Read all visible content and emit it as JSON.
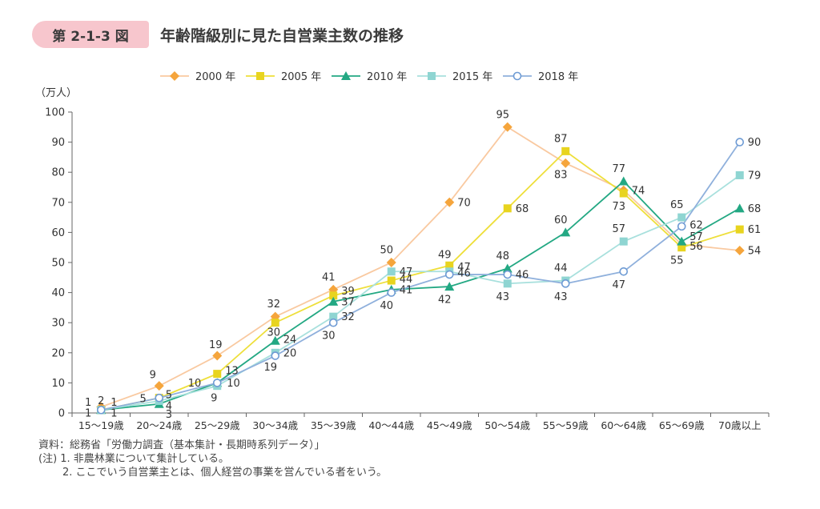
{
  "figure": {
    "number": "第 2-1-3 図",
    "title": "年齢階級別に見た自営業主数の推移"
  },
  "chart_data": {
    "type": "line",
    "title": "年齢階級別に見た自営業主数の推移",
    "ylabel": "（万人）",
    "xlabel": "",
    "ylim": [
      0,
      100
    ],
    "yticks": [
      0,
      10,
      20,
      30,
      40,
      50,
      60,
      70,
      80,
      90,
      100
    ],
    "categories": [
      "15～19歳",
      "20～24歳",
      "25～29歳",
      "30～34歳",
      "35～39歳",
      "40～44歳",
      "45～49歳",
      "50～54歳",
      "55～59歳",
      "60～64歳",
      "65～69歳",
      "70歳以上"
    ],
    "legend_position": "top",
    "series": [
      {
        "name": "2000 年",
        "color": "#f5a53c",
        "line_color": "#f9c9a0",
        "marker": "diamond",
        "values": [
          2,
          9,
          19,
          32,
          41,
          50,
          70,
          95,
          83,
          74,
          56,
          54
        ]
      },
      {
        "name": "2005 年",
        "color": "#e8d41f",
        "line_color": "#eedf3a",
        "marker": "square",
        "values": [
          1,
          5,
          13,
          30,
          39,
          44,
          49,
          68,
          87,
          73,
          55,
          61
        ]
      },
      {
        "name": "2010 年",
        "color": "#23a883",
        "line_color": "#23a883",
        "marker": "triangle",
        "values": [
          1,
          3,
          10,
          24,
          37,
          41,
          42,
          48,
          60,
          77,
          57,
          68
        ]
      },
      {
        "name": "2015 年",
        "color": "#8fd5d2",
        "line_color": "#a8e0dd",
        "marker": "square",
        "values": [
          1,
          4,
          9,
          20,
          32,
          47,
          47,
          43,
          44,
          57,
          65,
          79
        ]
      },
      {
        "name": "2018 年",
        "color": "#6e9bd4",
        "line_color": "#8fb0dc",
        "marker": "circle",
        "values": [
          1,
          5,
          10,
          19,
          30,
          40,
          46,
          46,
          43,
          47,
          62,
          90
        ]
      }
    ],
    "data_labels": [
      {
        "text": "1",
        "cat": 0,
        "value": 2,
        "dx": -12,
        "dy": -6
      },
      {
        "text": "2",
        "cat": 0,
        "value": 2,
        "dx": 0,
        "dy": -8
      },
      {
        "text": "1",
        "cat": 0,
        "value": 2,
        "dx": 12,
        "dy": -6
      },
      {
        "text": "1",
        "cat": 0,
        "value": 1,
        "dx": -12,
        "dy": 4
      },
      {
        "text": "1",
        "cat": 0,
        "value": 1,
        "dx": 12,
        "dy": 4
      },
      {
        "text": "9",
        "cat": 1,
        "value": 9,
        "dx": -8,
        "dy": -14
      },
      {
        "text": "5",
        "cat": 1,
        "value": 5,
        "dx": -16,
        "dy": 1
      },
      {
        "text": "5",
        "cat": 1,
        "value": 5,
        "dx": 8,
        "dy": -4
      },
      {
        "text": "4",
        "cat": 1,
        "value": 4,
        "dx": 8,
        "dy": 6
      },
      {
        "text": "3",
        "cat": 1,
        "value": 3,
        "dx": 8,
        "dy": 13
      },
      {
        "text": "19",
        "cat": 2,
        "value": 19,
        "dx": -2,
        "dy": -14
      },
      {
        "text": "13",
        "cat": 2,
        "value": 13,
        "dx": 10,
        "dy": -4
      },
      {
        "text": "10",
        "cat": 2,
        "value": 10,
        "dx": -20,
        "dy": 0
      },
      {
        "text": "10",
        "cat": 2,
        "value": 10,
        "dx": 12,
        "dy": 0
      },
      {
        "text": "9",
        "cat": 2,
        "value": 9,
        "dx": -4,
        "dy": 15
      },
      {
        "text": "32",
        "cat": 3,
        "value": 32,
        "dx": -2,
        "dy": -16
      },
      {
        "text": "30",
        "cat": 3,
        "value": 30,
        "dx": -2,
        "dy": 12
      },
      {
        "text": "24",
        "cat": 3,
        "value": 24,
        "dx": 10,
        "dy": -2
      },
      {
        "text": "20",
        "cat": 3,
        "value": 20,
        "dx": 10,
        "dy": 0
      },
      {
        "text": "19",
        "cat": 3,
        "value": 19,
        "dx": -6,
        "dy": 14
      },
      {
        "text": "41",
        "cat": 4,
        "value": 41,
        "dx": -6,
        "dy": -16
      },
      {
        "text": "39",
        "cat": 4,
        "value": 39,
        "dx": 10,
        "dy": -6
      },
      {
        "text": "37",
        "cat": 4,
        "value": 37,
        "dx": 10,
        "dy": 0
      },
      {
        "text": "32",
        "cat": 4,
        "value": 32,
        "dx": 10,
        "dy": 0
      },
      {
        "text": "30",
        "cat": 4,
        "value": 30,
        "dx": -6,
        "dy": 16
      },
      {
        "text": "50",
        "cat": 5,
        "value": 50,
        "dx": -6,
        "dy": -16
      },
      {
        "text": "47",
        "cat": 5,
        "value": 47,
        "dx": 10,
        "dy": 0
      },
      {
        "text": "44",
        "cat": 5,
        "value": 44,
        "dx": 10,
        "dy": -2
      },
      {
        "text": "41",
        "cat": 5,
        "value": 41,
        "dx": 10,
        "dy": 0
      },
      {
        "text": "40",
        "cat": 5,
        "value": 40,
        "dx": -6,
        "dy": 16
      },
      {
        "text": "70",
        "cat": 6,
        "value": 70,
        "dx": 10,
        "dy": 0
      },
      {
        "text": "49",
        "cat": 6,
        "value": 49,
        "dx": -6,
        "dy": -14
      },
      {
        "text": "47",
        "cat": 6,
        "value": 47,
        "dx": 10,
        "dy": -6
      },
      {
        "text": "46",
        "cat": 6,
        "value": 46,
        "dx": 10,
        "dy": -2
      },
      {
        "text": "42",
        "cat": 6,
        "value": 42,
        "dx": -6,
        "dy": 16
      },
      {
        "text": "95",
        "cat": 7,
        "value": 95,
        "dx": -6,
        "dy": -16
      },
      {
        "text": "68",
        "cat": 7,
        "value": 68,
        "dx": 10,
        "dy": 0
      },
      {
        "text": "48",
        "cat": 7,
        "value": 48,
        "dx": -6,
        "dy": -16
      },
      {
        "text": "46",
        "cat": 7,
        "value": 46,
        "dx": 10,
        "dy": 0
      },
      {
        "text": "43",
        "cat": 7,
        "value": 43,
        "dx": -6,
        "dy": 16
      },
      {
        "text": "87",
        "cat": 8,
        "value": 87,
        "dx": -6,
        "dy": -16
      },
      {
        "text": "83",
        "cat": 8,
        "value": 83,
        "dx": -6,
        "dy": 14
      },
      {
        "text": "60",
        "cat": 8,
        "value": 60,
        "dx": -6,
        "dy": -16
      },
      {
        "text": "44",
        "cat": 8,
        "value": 44,
        "dx": -6,
        "dy": -16
      },
      {
        "text": "43",
        "cat": 8,
        "value": 43,
        "dx": -6,
        "dy": 16
      },
      {
        "text": "77",
        "cat": 9,
        "value": 77,
        "dx": -6,
        "dy": -16
      },
      {
        "text": "74",
        "cat": 9,
        "value": 74,
        "dx": 10,
        "dy": 0
      },
      {
        "text": "73",
        "cat": 9,
        "value": 73,
        "dx": -6,
        "dy": 16
      },
      {
        "text": "57",
        "cat": 9,
        "value": 57,
        "dx": -6,
        "dy": -16
      },
      {
        "text": "47",
        "cat": 9,
        "value": 47,
        "dx": -6,
        "dy": 16
      },
      {
        "text": "65",
        "cat": 10,
        "value": 65,
        "dx": -6,
        "dy": -16
      },
      {
        "text": "62",
        "cat": 10,
        "value": 62,
        "dx": 10,
        "dy": -2
      },
      {
        "text": "57",
        "cat": 10,
        "value": 57,
        "dx": 10,
        "dy": -6
      },
      {
        "text": "56",
        "cat": 10,
        "value": 56,
        "dx": 10,
        "dy": 2
      },
      {
        "text": "55",
        "cat": 10,
        "value": 55,
        "dx": -6,
        "dy": 16
      },
      {
        "text": "90",
        "cat": 11,
        "value": 90,
        "dx": 10,
        "dy": 0
      },
      {
        "text": "79",
        "cat": 11,
        "value": 79,
        "dx": 10,
        "dy": 0
      },
      {
        "text": "68",
        "cat": 11,
        "value": 68,
        "dx": 10,
        "dy": 0
      },
      {
        "text": "61",
        "cat": 11,
        "value": 61,
        "dx": 10,
        "dy": 0
      },
      {
        "text": "54",
        "cat": 11,
        "value": 54,
        "dx": 10,
        "dy": 0
      }
    ]
  },
  "notes": {
    "source": "資料：総務省「労働力調査（基本集計・長期時系列データ）」",
    "note1": "(注) 1. 非農林業について集計している。",
    "note2": "2. ここでいう自営業主とは、個人経営の事業を営んでいる者をいう。"
  }
}
